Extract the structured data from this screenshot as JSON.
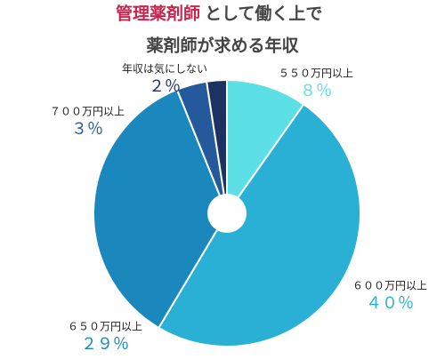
{
  "chart_data": {
    "type": "pie",
    "title": {
      "highlight": "管理薬剤師",
      "line1": "として働く上で",
      "line2": "薬剤師が求める年収"
    },
    "title_highlight_color": "#c8264e",
    "categories": [
      "５５０万円以上",
      "６００万円以上",
      "６５０万円以上",
      "７００万円以上",
      "年収は気にしない"
    ],
    "values": [
      8,
      40,
      29,
      3,
      2
    ],
    "value_labels": [
      "８％",
      "４０％",
      "２９％",
      "３％",
      "２％"
    ],
    "colors": [
      "#5ce0e6",
      "#2ab0d4",
      "#1a88bd",
      "#245a9c",
      "#1c3260"
    ],
    "label_colors": [
      "#5ce0e6",
      "#2ab0d4",
      "#1a88bd",
      "#245a9c",
      "#1c3260"
    ]
  }
}
